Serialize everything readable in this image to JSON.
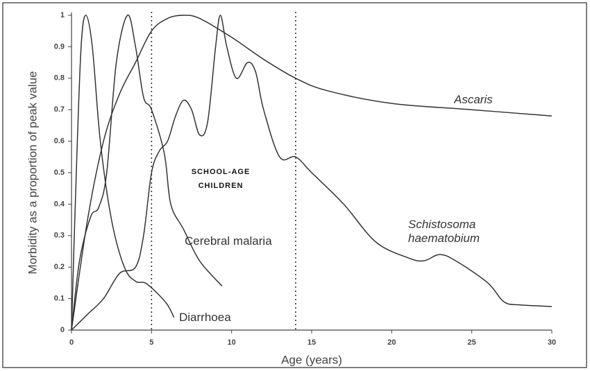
{
  "chart_data": {
    "type": "line",
    "x_label": "Age (years)",
    "y_label": "Morbidity as a proportion of peak value",
    "xlim": [
      0,
      30
    ],
    "ylim": [
      0,
      1
    ],
    "xticks": [
      0,
      5,
      10,
      15,
      20,
      25,
      30
    ],
    "yticks": [
      0,
      0.1,
      0.2,
      0.3,
      0.4,
      0.5,
      0.6,
      0.7,
      0.8,
      0.9,
      1
    ],
    "reference_lines": [
      5,
      14
    ],
    "annotations": [
      "SCHOOL-AGE CHILDREN"
    ],
    "series": [
      {
        "name": "Diarrhoea",
        "color": "#333333",
        "x": [
          0,
          0.3,
          0.6,
          0.9,
          1.3,
          1.8,
          2.5,
          3.3,
          4,
          4.6,
          5.3,
          6,
          6.4
        ],
        "values": [
          0,
          0.5,
          0.9,
          1,
          0.9,
          0.6,
          0.35,
          0.2,
          0.155,
          0.15,
          0.12,
          0.08,
          0.04
        ]
      },
      {
        "name": "Cerebral malaria",
        "color": "#333333",
        "x": [
          0,
          0.5,
          1.2,
          1.7,
          2.2,
          2.8,
          3.5,
          4,
          4.5,
          5,
          5.8,
          6.2,
          7,
          8,
          9.4
        ],
        "values": [
          0,
          0.22,
          0.36,
          0.39,
          0.5,
          0.85,
          1,
          0.9,
          0.74,
          0.7,
          0.56,
          0.4,
          0.32,
          0.22,
          0.14
        ]
      },
      {
        "name": "Ascaris",
        "color": "#333333",
        "x": [
          0,
          1,
          2,
          3,
          4,
          5,
          6,
          7,
          8,
          10,
          12,
          14,
          16,
          20,
          25,
          30
        ],
        "values": [
          0,
          0.35,
          0.6,
          0.75,
          0.85,
          0.95,
          0.99,
          1,
          0.99,
          0.93,
          0.86,
          0.8,
          0.76,
          0.72,
          0.7,
          0.68
        ]
      },
      {
        "name": "Schistosoma haematobium",
        "color": "#333333",
        "x": [
          0,
          1,
          2,
          3,
          4,
          4.5,
          5,
          5.5,
          6,
          6.5,
          7,
          7.5,
          8,
          8.5,
          9,
          9.3,
          9.7,
          10.3,
          11,
          11.5,
          12,
          13,
          14,
          15,
          17,
          19,
          21,
          22,
          23,
          24,
          26,
          27,
          28,
          30
        ],
        "values": [
          0,
          0.05,
          0.1,
          0.18,
          0.2,
          0.3,
          0.5,
          0.57,
          0.6,
          0.68,
          0.73,
          0.7,
          0.62,
          0.66,
          0.9,
          1,
          0.9,
          0.8,
          0.85,
          0.82,
          0.7,
          0.55,
          0.55,
          0.5,
          0.4,
          0.28,
          0.23,
          0.22,
          0.24,
          0.22,
          0.15,
          0.09,
          0.08,
          0.075
        ]
      }
    ]
  }
}
